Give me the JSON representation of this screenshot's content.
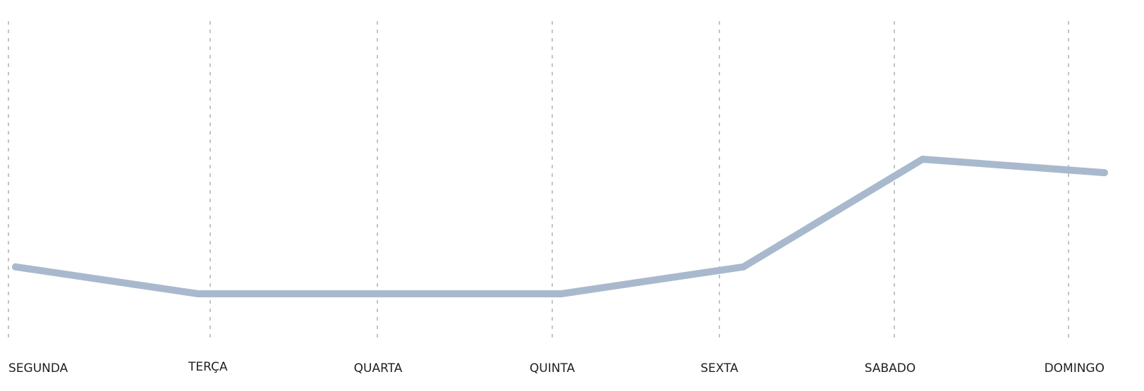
{
  "chart_data": {
    "type": "line",
    "title": "",
    "xlabel": "",
    "ylabel": "",
    "categories": [
      "SEGUNDA",
      "TERÇA",
      "QUARTA",
      "QUINTA",
      "SEXTA",
      "SABADO",
      "DOMINGO"
    ],
    "series": [
      {
        "values": [
          2,
          1,
          1,
          1,
          2,
          6,
          5.5
        ],
        "color": "#a9b9cd"
      }
    ],
    "ylim": [
      0,
      8
    ],
    "grid": "vertical-dotted",
    "legend": "none",
    "colors": {
      "gridline": "#c4c4c4",
      "label": "#1f1f1f"
    }
  }
}
